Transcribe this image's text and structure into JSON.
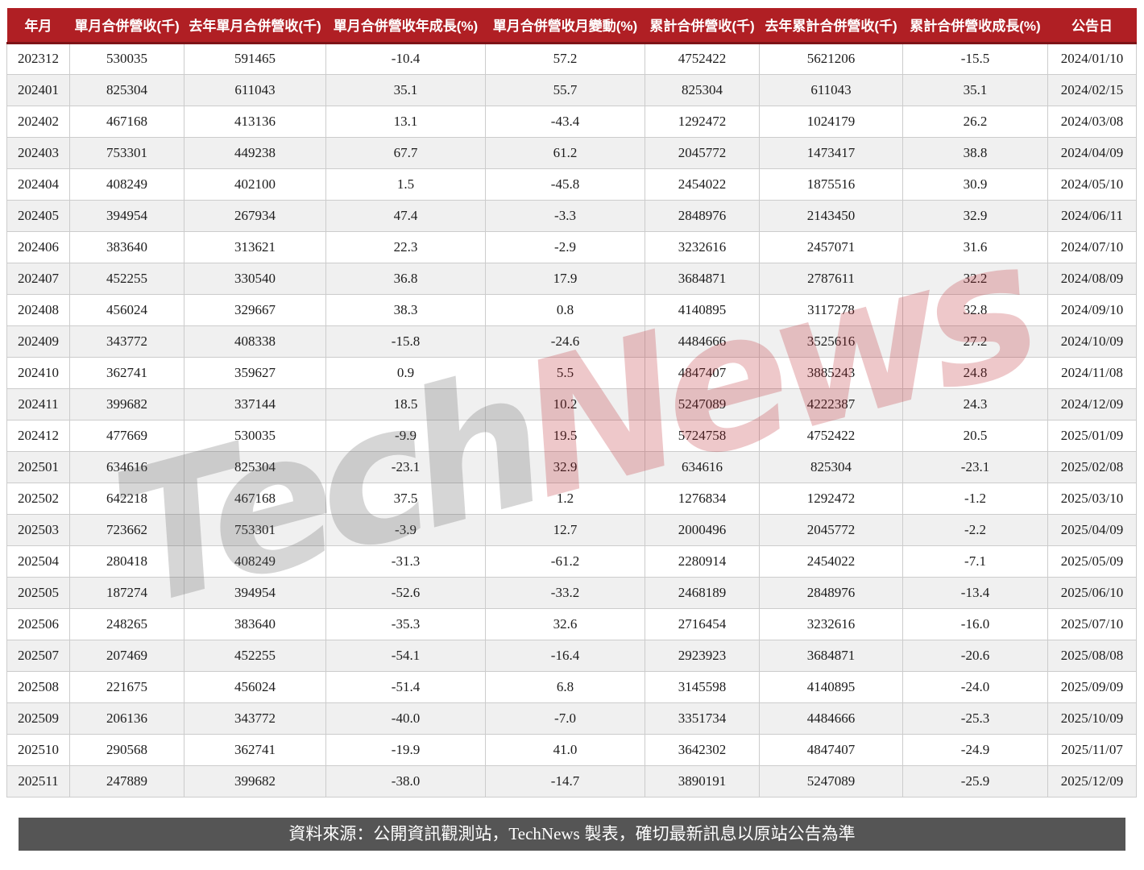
{
  "chart_data": {
    "type": "table",
    "title": "",
    "columns": [
      "年月",
      "單月合併營收(千)",
      "去年單月合併營收(千)",
      "單月合併營收年成長(%)",
      "單月合併營收月變動(%)",
      "累計合併營收(千)",
      "去年累計合併營收(千)",
      "累計合併營收成長(%)",
      "公告日"
    ],
    "rows": [
      [
        "202312",
        "530035",
        "591465",
        "-10.4",
        "57.2",
        "4752422",
        "5621206",
        "-15.5",
        "2024/01/10"
      ],
      [
        "202401",
        "825304",
        "611043",
        "35.1",
        "55.7",
        "825304",
        "611043",
        "35.1",
        "2024/02/15"
      ],
      [
        "202402",
        "467168",
        "413136",
        "13.1",
        "-43.4",
        "1292472",
        "1024179",
        "26.2",
        "2024/03/08"
      ],
      [
        "202403",
        "753301",
        "449238",
        "67.7",
        "61.2",
        "2045772",
        "1473417",
        "38.8",
        "2024/04/09"
      ],
      [
        "202404",
        "408249",
        "402100",
        "1.5",
        "-45.8",
        "2454022",
        "1875516",
        "30.9",
        "2024/05/10"
      ],
      [
        "202405",
        "394954",
        "267934",
        "47.4",
        "-3.3",
        "2848976",
        "2143450",
        "32.9",
        "2024/06/11"
      ],
      [
        "202406",
        "383640",
        "313621",
        "22.3",
        "-2.9",
        "3232616",
        "2457071",
        "31.6",
        "2024/07/10"
      ],
      [
        "202407",
        "452255",
        "330540",
        "36.8",
        "17.9",
        "3684871",
        "2787611",
        "32.2",
        "2024/08/09"
      ],
      [
        "202408",
        "456024",
        "329667",
        "38.3",
        "0.8",
        "4140895",
        "3117278",
        "32.8",
        "2024/09/10"
      ],
      [
        "202409",
        "343772",
        "408338",
        "-15.8",
        "-24.6",
        "4484666",
        "3525616",
        "27.2",
        "2024/10/09"
      ],
      [
        "202410",
        "362741",
        "359627",
        "0.9",
        "5.5",
        "4847407",
        "3885243",
        "24.8",
        "2024/11/08"
      ],
      [
        "202411",
        "399682",
        "337144",
        "18.5",
        "10.2",
        "5247089",
        "4222387",
        "24.3",
        "2024/12/09"
      ],
      [
        "202412",
        "477669",
        "530035",
        "-9.9",
        "19.5",
        "5724758",
        "4752422",
        "20.5",
        "2025/01/09"
      ],
      [
        "202501",
        "634616",
        "825304",
        "-23.1",
        "32.9",
        "634616",
        "825304",
        "-23.1",
        "2025/02/08"
      ],
      [
        "202502",
        "642218",
        "467168",
        "37.5",
        "1.2",
        "1276834",
        "1292472",
        "-1.2",
        "2025/03/10"
      ],
      [
        "202503",
        "723662",
        "753301",
        "-3.9",
        "12.7",
        "2000496",
        "2045772",
        "-2.2",
        "2025/04/09"
      ],
      [
        "202504",
        "280418",
        "408249",
        "-31.3",
        "-61.2",
        "2280914",
        "2454022",
        "-7.1",
        "2025/05/09"
      ],
      [
        "202505",
        "187274",
        "394954",
        "-52.6",
        "-33.2",
        "2468189",
        "2848976",
        "-13.4",
        "2025/06/10"
      ],
      [
        "202506",
        "248265",
        "383640",
        "-35.3",
        "32.6",
        "2716454",
        "3232616",
        "-16.0",
        "2025/07/10"
      ],
      [
        "202507",
        "207469",
        "452255",
        "-54.1",
        "-16.4",
        "2923923",
        "3684871",
        "-20.6",
        "2025/08/08"
      ],
      [
        "202508",
        "221675",
        "456024",
        "-51.4",
        "6.8",
        "3145598",
        "4140895",
        "-24.0",
        "2025/09/09"
      ],
      [
        "202509",
        "206136",
        "343772",
        "-40.0",
        "-7.0",
        "3351734",
        "4484666",
        "-25.3",
        "2025/10/09"
      ],
      [
        "202510",
        "290568",
        "362741",
        "-19.9",
        "41.0",
        "3642302",
        "4847407",
        "-24.9",
        "2025/11/07"
      ],
      [
        "202511",
        "247889",
        "399682",
        "-38.0",
        "-14.7",
        "3890191",
        "5247089",
        "-25.9",
        "2025/12/09"
      ]
    ],
    "layout_hints": {
      "grid": true,
      "header_position": "top",
      "zebra_striping": true
    }
  },
  "watermark": {
    "part1": "Tech",
    "part2": "News"
  },
  "footer": {
    "prefix": "資料來源：公開資訊觀測站，",
    "brand": "TechNews",
    "suffix": " 製表，確切最新訊息以原站公告為準"
  },
  "colors": {
    "header_bg": "#b01f24",
    "header_border": "#7e1418",
    "header_text": "#ffffff",
    "row_alt_bg": "#f0f0f0",
    "cell_border": "#cccccc",
    "footer_bg": "#555555",
    "footer_text": "#ffffff",
    "watermark_gray": "rgba(90,90,90,0.25)",
    "watermark_red": "rgba(186,34,42,0.25)"
  }
}
